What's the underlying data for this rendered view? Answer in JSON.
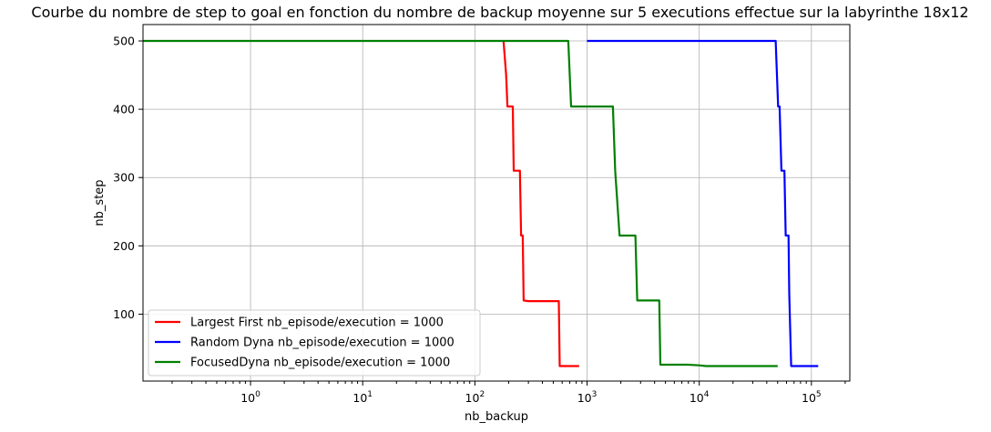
{
  "chart_data": {
    "type": "line",
    "title": "Courbe du nombre de step to goal en fonction du nombre de backup moyenne sur 5 executions effectue sur la labyrinthe 18x12",
    "xlabel": "nb_backup",
    "ylabel": "nb_step",
    "xscale": "log",
    "xlim": [
      0.11,
      220000
    ],
    "ylim": [
      2,
      524
    ],
    "grid": true,
    "legend_loc": "lower-left",
    "x_ticks": [
      {
        "value": 1,
        "base": "10",
        "exp": "0"
      },
      {
        "value": 10,
        "base": "10",
        "exp": "1"
      },
      {
        "value": 100,
        "base": "10",
        "exp": "2"
      },
      {
        "value": 1000,
        "base": "10",
        "exp": "3"
      },
      {
        "value": 10000,
        "base": "10",
        "exp": "4"
      },
      {
        "value": 100000,
        "base": "10",
        "exp": "5"
      }
    ],
    "y_ticks": [
      100,
      200,
      300,
      400,
      500
    ],
    "series": [
      {
        "name": "Largest First nb_episode/execution = 1000",
        "color": "#ff0000",
        "x": [
          180,
          190,
          195,
          218,
          222,
          232,
          236,
          252,
          258,
          267,
          272,
          300,
          400,
          560,
          570,
          850
        ],
        "y": [
          500,
          450,
          404,
          404,
          310,
          310,
          310,
          310,
          215,
          215,
          120,
          119,
          119,
          119,
          24,
          24
        ]
      },
      {
        "name": "Random Dyna nb_episode/execution = 1000",
        "color": "#0000ff",
        "x": [
          1000,
          5000,
          20000,
          48000,
          50500,
          52000,
          54000,
          57500,
          59000,
          62500,
          63500,
          66000,
          90000,
          115000
        ],
        "y": [
          500,
          500,
          500,
          500,
          404,
          404,
          310,
          310,
          215,
          215,
          130,
          24,
          24,
          24
        ]
      },
      {
        "name": "FocusedDyna nb_episode/execution = 1000",
        "color": "#008000",
        "x": [
          0.11,
          1,
          10,
          100,
          500,
          680,
          720,
          1000,
          1700,
          1780,
          1950,
          2700,
          2800,
          4400,
          4500,
          8000,
          10000,
          11500,
          20000,
          50000
        ],
        "y": [
          500,
          500,
          500,
          500,
          500,
          500,
          404,
          404,
          404,
          310,
          215,
          215,
          120,
          120,
          26,
          26,
          25,
          24,
          24,
          24
        ]
      }
    ]
  }
}
